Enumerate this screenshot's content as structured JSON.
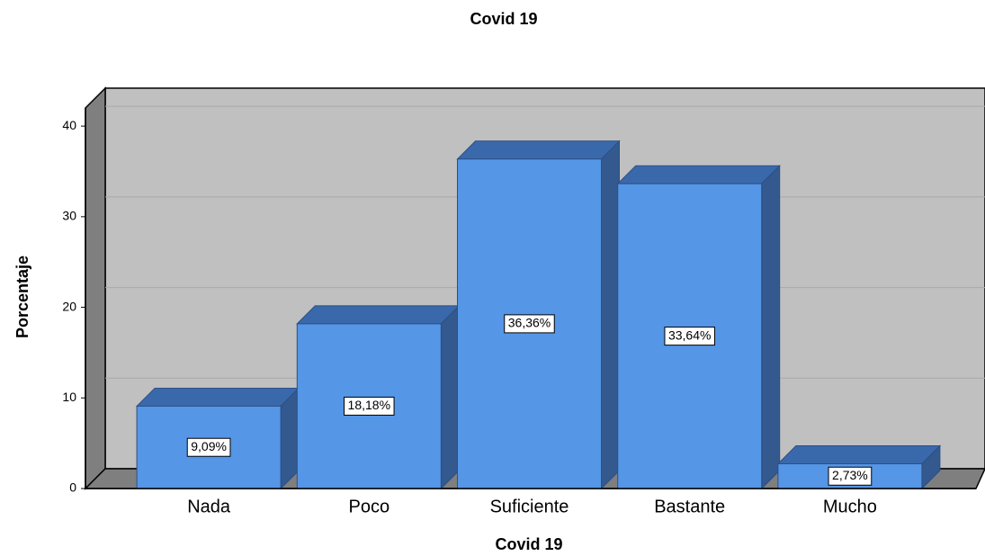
{
  "chart_data": {
    "type": "bar3d",
    "title": "Covid 19",
    "x_label": "Covid 19",
    "y_label": "Porcentaje",
    "categories": [
      "Nada",
      "Poco",
      "Suficiente",
      "Bastante",
      "Mucho"
    ],
    "values": [
      9.09,
      18.18,
      36.36,
      33.64,
      2.73
    ],
    "value_labels": [
      "9,09%",
      "18,18%",
      "36,36%",
      "33,64%",
      "2,73%"
    ],
    "color": "#5596e6",
    "ylim": [
      0,
      42
    ],
    "yticks": [
      0,
      10,
      20,
      30,
      40
    ],
    "grid": true
  }
}
